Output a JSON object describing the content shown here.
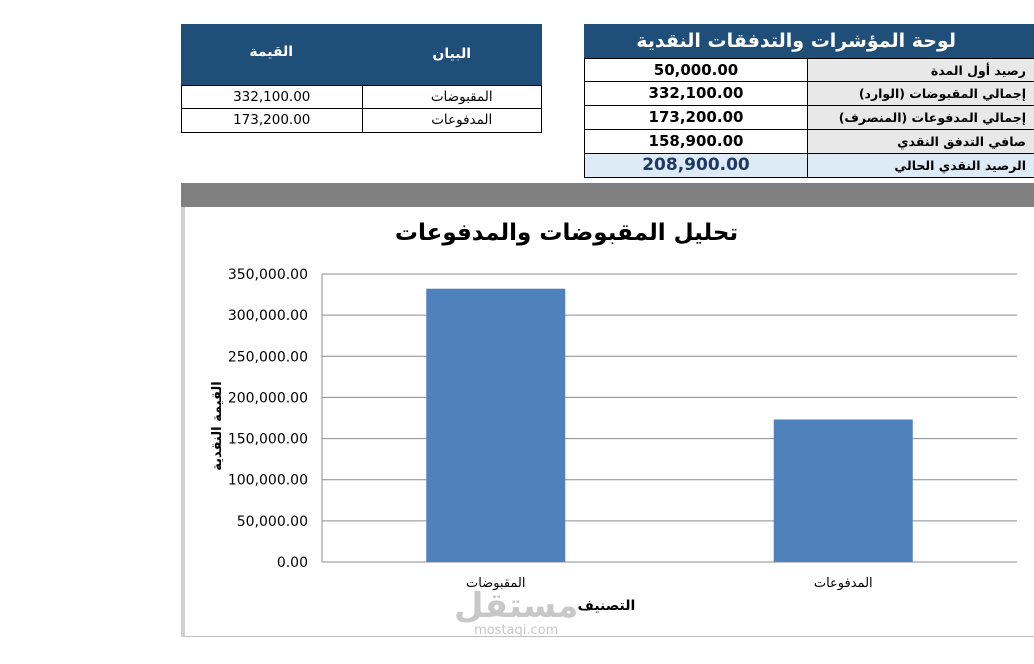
{
  "dashboard": {
    "title": "لوحة المؤشرات والتدفقات النقدية",
    "rows": [
      {
        "label": "رصيد أول المدة",
        "value": "50,000.00"
      },
      {
        "label": "إجمالي المقبوضات (الوارد)",
        "value": "332,100.00"
      },
      {
        "label": "إجمالي المدفوعات (المنصرف)",
        "value": "173,200.00"
      },
      {
        "label": "صافي التدفق النقدي",
        "value": "158,900.00"
      },
      {
        "label": "الرصيد النقدي الحالي",
        "value": "208,900.00"
      }
    ]
  },
  "summary": {
    "headers": {
      "label": "البيان",
      "value": "القيمة"
    },
    "rows": [
      {
        "label": "المقبوضات",
        "value": "332,100.00"
      },
      {
        "label": "المدفوعات",
        "value": "173,200.00"
      }
    ]
  },
  "chart_data": {
    "type": "bar",
    "title": "تحليل المقبوضات والمدفوعات",
    "xlabel": "التصنيف",
    "ylabel": "القيمة النقدية",
    "categories": [
      "المقبوضات",
      "المدفوعات"
    ],
    "values": [
      332100,
      173200
    ],
    "ylim": [
      0,
      350000
    ],
    "yticks": [
      "0.00",
      "50,000.00",
      "100,000.00",
      "150,000.00",
      "200,000.00",
      "250,000.00",
      "300,000.00",
      "350,000.00"
    ],
    "grid": true,
    "bar_color": "#4f81bd"
  },
  "watermark": {
    "main": "مستقل",
    "sub": "mostaqi.com"
  },
  "colors": {
    "header": "#1f4e79",
    "band": "#808080",
    "highlight": "#ddebf7"
  }
}
